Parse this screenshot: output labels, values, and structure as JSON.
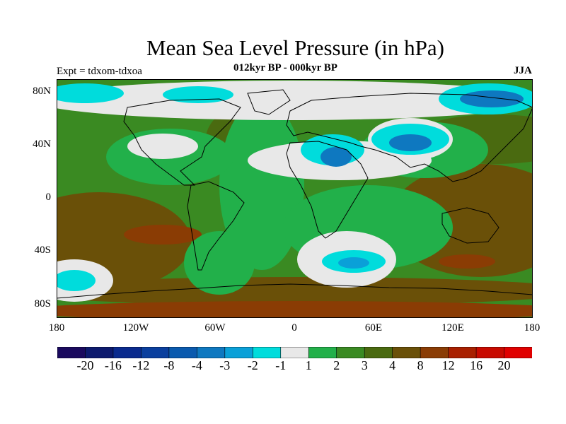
{
  "figure": {
    "title": "Mean Sea Level Pressure (in hPa)",
    "subtitle": "012kyr BP - 000kyr BP",
    "left_label": "Expt = tdxom-tdxoa",
    "right_label": "JJA"
  },
  "axes": {
    "lat_ticks": [
      "80N",
      "40N",
      "0",
      "40S",
      "80S"
    ],
    "lon_ticks": [
      "180",
      "120W",
      "60W",
      "0",
      "60E",
      "120E",
      "180"
    ]
  },
  "colorbar": {
    "labels": [
      "-20",
      "-16",
      "-12",
      "-8",
      "-4",
      "-3",
      "-2",
      "-1",
      "1",
      "2",
      "3",
      "4",
      "8",
      "12",
      "16",
      "20"
    ],
    "colors": [
      "#1a0a5e",
      "#0d1a6e",
      "#0a2a8e",
      "#0a3f9e",
      "#0a5aae",
      "#0e78c0",
      "#0aa0d8",
      "#00dcdc",
      "#e8e8e8",
      "#22b04a",
      "#3a8a22",
      "#4a6a10",
      "#6a5008",
      "#8a3c04",
      "#a82000",
      "#c80a00",
      "#e00000"
    ]
  },
  "legend": {
    "low_pressure_color": "#0a5aae",
    "high_pressure_color": "#8a3c04"
  }
}
